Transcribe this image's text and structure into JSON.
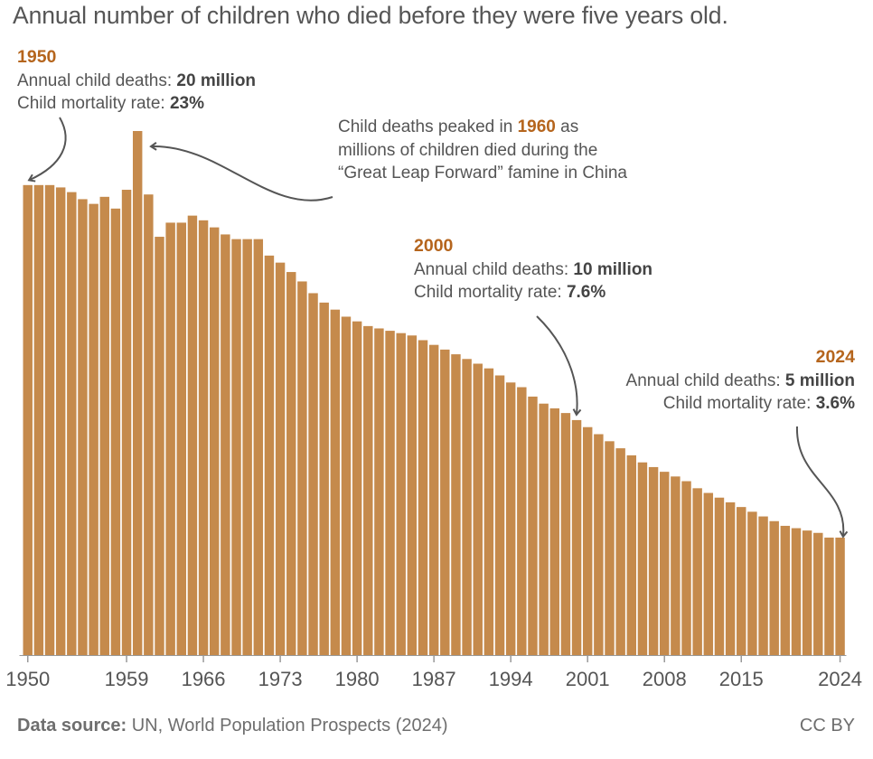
{
  "title": "Annual number of children who died before they were five years old.",
  "chart_data": {
    "type": "bar",
    "title": "Annual number of children who died before they were five years old.",
    "categories": [
      1950,
      1951,
      1952,
      1953,
      1954,
      1955,
      1956,
      1957,
      1958,
      1959,
      1960,
      1961,
      1962,
      1963,
      1964,
      1965,
      1966,
      1967,
      1968,
      1969,
      1970,
      1971,
      1972,
      1973,
      1974,
      1975,
      1976,
      1977,
      1978,
      1979,
      1980,
      1981,
      1982,
      1983,
      1984,
      1985,
      1986,
      1987,
      1988,
      1989,
      1990,
      1991,
      1992,
      1993,
      1994,
      1995,
      1996,
      1997,
      1998,
      1999,
      2000,
      2001,
      2002,
      2003,
      2004,
      2005,
      2006,
      2007,
      2008,
      2009,
      2010,
      2011,
      2012,
      2013,
      2014,
      2015,
      2016,
      2017,
      2018,
      2019,
      2020,
      2021,
      2022,
      2023,
      2024
    ],
    "values": [
      20.0,
      20.0,
      20.0,
      19.9,
      19.7,
      19.4,
      19.2,
      19.5,
      19.0,
      19.8,
      22.3,
      19.6,
      17.8,
      18.4,
      18.4,
      18.7,
      18.5,
      18.2,
      17.9,
      17.7,
      17.7,
      17.7,
      17.0,
      16.7,
      16.3,
      15.9,
      15.4,
      15.0,
      14.7,
      14.4,
      14.2,
      14.0,
      13.9,
      13.8,
      13.7,
      13.6,
      13.4,
      13.2,
      13.0,
      12.8,
      12.6,
      12.4,
      12.2,
      11.9,
      11.6,
      11.4,
      11.0,
      10.7,
      10.5,
      10.3,
      10.0,
      9.7,
      9.4,
      9.1,
      8.8,
      8.5,
      8.2,
      8.0,
      7.8,
      7.6,
      7.4,
      7.1,
      6.9,
      6.7,
      6.5,
      6.3,
      6.1,
      5.9,
      5.7,
      5.5,
      5.4,
      5.3,
      5.2,
      5.0,
      5.0
    ],
    "unit": "million",
    "ylim": [
      0,
      22.3
    ],
    "xticks": [
      "1950",
      "1959",
      "1966",
      "1973",
      "1980",
      "1987",
      "1994",
      "2001",
      "2008",
      "2015",
      "2024"
    ],
    "bar_color": "#c58a4c",
    "axis_color": "#999999",
    "arrow_color": "#555555"
  },
  "annotations": {
    "a1950": {
      "year": "1950",
      "deaths_label": "Annual child deaths: ",
      "deaths": "20 million",
      "rate_label": "Child mortality rate: ",
      "rate": "23%"
    },
    "a1960": {
      "pre": "Child deaths peaked in ",
      "year": "1960",
      "post": " as",
      "line2": "millions of children died during the",
      "line3": "“Great Leap Forward” famine in China"
    },
    "a2000": {
      "year": "2000",
      "deaths_label": "Annual child deaths: ",
      "deaths": "10 million",
      "rate_label": "Child mortality rate: ",
      "rate": "7.6%"
    },
    "a2024": {
      "year": "2024",
      "deaths_label": "Annual child deaths: ",
      "deaths": "5 million",
      "rate_label": "Child mortality rate: ",
      "rate": "3.6%"
    }
  },
  "footer": {
    "source_label": "Data source:",
    "source_text": " UN, World Population Prospects (2024)",
    "license": "CC BY"
  }
}
